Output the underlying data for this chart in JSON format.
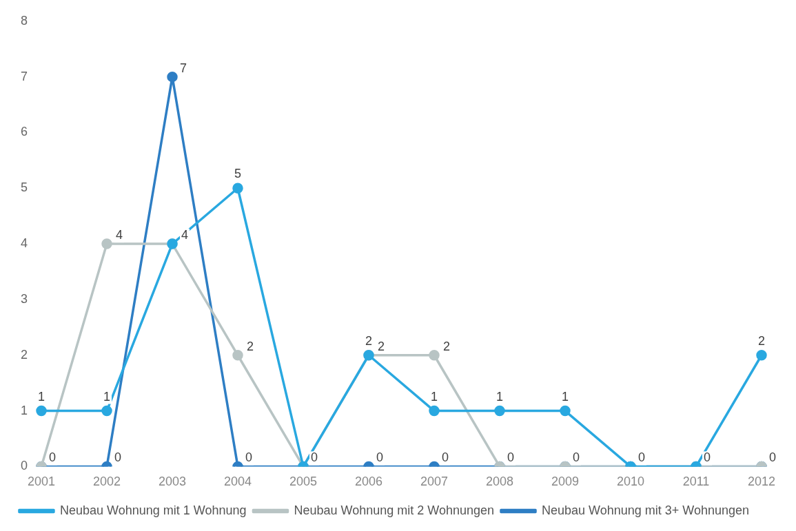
{
  "chart_data": {
    "type": "line",
    "categories": [
      "2001",
      "2002",
      "2003",
      "2004",
      "2005",
      "2006",
      "2007",
      "2008",
      "2009",
      "2010",
      "2011",
      "2012"
    ],
    "series": [
      {
        "name": "Neubau Wohnung mit 1 Wohnung",
        "color": "#29a8e0",
        "values": [
          1,
          1,
          4,
          5,
          0,
          2,
          1,
          1,
          1,
          0,
          0,
          2
        ],
        "value_labels": [
          "1",
          "1",
          null,
          "5",
          null,
          "2",
          "1",
          "1",
          "1",
          null,
          null,
          "2"
        ]
      },
      {
        "name": "Neubau Wohnung mit 2 Wohnungen",
        "color": "#b8c4c4",
        "values": [
          0,
          4,
          4,
          2,
          0,
          2,
          2,
          0,
          0,
          0,
          0,
          0
        ],
        "value_labels": [
          null,
          "4",
          "4",
          "2",
          null,
          "2",
          "2",
          null,
          null,
          null,
          null,
          null
        ]
      },
      {
        "name": "Neubau Wohnung mit 3+ Wohnungen",
        "color": "#2e7ec4",
        "values": [
          0,
          0,
          7,
          0,
          0,
          0,
          0,
          0,
          0,
          0,
          0,
          0
        ],
        "value_labels": [
          "0",
          "0",
          "7",
          "0",
          "0",
          "0",
          "0",
          "0",
          "0",
          "0",
          "0",
          "0"
        ]
      }
    ],
    "ylim": [
      0,
      8
    ],
    "yticks": [
      0,
      1,
      2,
      3,
      4,
      5,
      6,
      7,
      8
    ],
    "grid": false,
    "legend": "bottom",
    "marker": "circle",
    "line_style": "solid"
  }
}
